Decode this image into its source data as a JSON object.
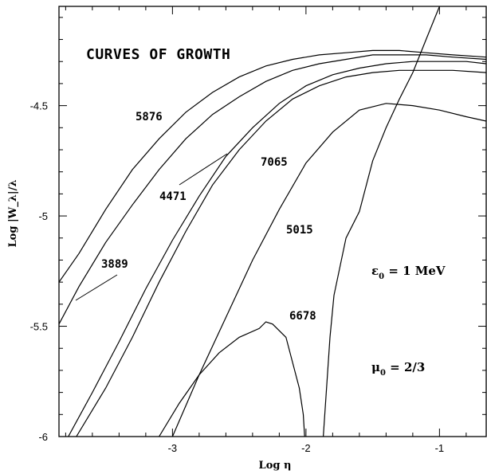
{
  "chart_data": {
    "type": "line",
    "title": "CURVES OF GROWTH",
    "xlabel": "Log η",
    "ylabel": "Log |W_λ|/λ",
    "xlim": [
      -3.85,
      -0.65
    ],
    "ylim": [
      -6.0,
      -4.05
    ],
    "x_ticks": [
      -3,
      -2,
      -1
    ],
    "y_ticks": [
      -6,
      -5.5,
      -5,
      -4.5
    ],
    "x_tick_labels": [
      "-3",
      "-2",
      "-1"
    ],
    "y_tick_labels": [
      "-6",
      "-5.5",
      "-5",
      "-4.5"
    ],
    "grid": false,
    "annotations": {
      "epsilon": {
        "sym": "ε",
        "sub": "0",
        "rest": " = 1 MeV"
      },
      "mu": {
        "sym": "μ",
        "sub": "0",
        "rest": " = 2/3"
      }
    },
    "series": [
      {
        "name": "5876",
        "x": [
          -3.85,
          -3.7,
          -3.5,
          -3.3,
          -3.1,
          -2.9,
          -2.7,
          -2.5,
          -2.3,
          -2.1,
          -1.9,
          -1.7,
          -1.5,
          -1.3,
          -1.1,
          -0.9,
          -0.65
        ],
        "y": [
          -5.3,
          -5.17,
          -4.97,
          -4.79,
          -4.65,
          -4.53,
          -4.44,
          -4.37,
          -4.32,
          -4.29,
          -4.27,
          -4.26,
          -4.25,
          -4.25,
          -4.26,
          -4.27,
          -4.28
        ]
      },
      {
        "name": "3889",
        "x": [
          -3.85,
          -3.7,
          -3.5,
          -3.3,
          -3.1,
          -2.9,
          -2.7,
          -2.5,
          -2.3,
          -2.1,
          -1.9,
          -1.7,
          -1.5,
          -1.3,
          -1.1,
          -0.9,
          -0.65
        ],
        "y": [
          -5.49,
          -5.32,
          -5.12,
          -4.95,
          -4.79,
          -4.65,
          -4.54,
          -4.46,
          -4.39,
          -4.34,
          -4.31,
          -4.29,
          -4.27,
          -4.27,
          -4.27,
          -4.28,
          -4.29
        ]
      },
      {
        "name": "4471",
        "x": [
          -3.78,
          -3.6,
          -3.4,
          -3.2,
          -3.0,
          -2.8,
          -2.6,
          -2.4,
          -2.2,
          -2.0,
          -1.8,
          -1.6,
          -1.4,
          -1.2,
          -1.0,
          -0.8,
          -0.65
        ],
        "y": [
          -6.0,
          -5.8,
          -5.57,
          -5.33,
          -5.11,
          -4.91,
          -4.73,
          -4.6,
          -4.49,
          -4.41,
          -4.36,
          -4.33,
          -4.31,
          -4.3,
          -4.3,
          -4.3,
          -4.31
        ]
      },
      {
        "name": "7065",
        "x": [
          -3.72,
          -3.5,
          -3.3,
          -3.1,
          -2.9,
          -2.7,
          -2.5,
          -2.3,
          -2.1,
          -1.9,
          -1.7,
          -1.5,
          -1.3,
          -1.1,
          -0.9,
          -0.65
        ],
        "y": [
          -6.0,
          -5.78,
          -5.55,
          -5.3,
          -5.07,
          -4.86,
          -4.7,
          -4.57,
          -4.47,
          -4.41,
          -4.37,
          -4.35,
          -4.34,
          -4.34,
          -4.34,
          -4.35
        ]
      },
      {
        "name": "5015",
        "x": [
          -3.0,
          -2.8,
          -2.6,
          -2.4,
          -2.2,
          -2.0,
          -1.8,
          -1.6,
          -1.4,
          -1.2,
          -1.0,
          -0.8,
          -0.65
        ],
        "y": [
          -6.0,
          -5.72,
          -5.46,
          -5.2,
          -4.97,
          -4.76,
          -4.62,
          -4.52,
          -4.49,
          -4.5,
          -4.52,
          -4.55,
          -4.57
        ]
      },
      {
        "name": "6678",
        "x": [
          -3.1,
          -2.95,
          -2.8,
          -2.65,
          -2.5,
          -2.35,
          -2.3,
          -2.25,
          -2.15,
          -2.05,
          -2.02,
          -2.01
        ],
        "y": [
          -6.0,
          -5.85,
          -5.72,
          -5.62,
          -5.55,
          -5.51,
          -5.48,
          -5.49,
          -5.55,
          -5.78,
          -5.9,
          -6.0
        ]
      },
      {
        "name": "",
        "x": [
          -1.87,
          -1.82,
          -1.79,
          -1.7,
          -1.6,
          -1.5,
          -1.4,
          -1.3,
          -1.2,
          -1.1,
          -1.0
        ],
        "y": [
          -6.0,
          -5.55,
          -5.36,
          -5.1,
          -4.98,
          -4.75,
          -4.6,
          -4.47,
          -4.35,
          -4.2,
          -4.05
        ]
      }
    ],
    "labels": [
      "5876",
      "4471",
      "7065",
      "3889",
      "5015",
      "6678"
    ]
  }
}
